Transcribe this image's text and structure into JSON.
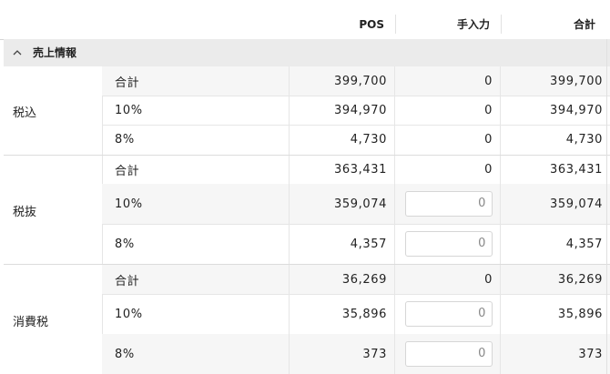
{
  "header": {
    "pos": "POS",
    "manual": "手入力",
    "total": "合計"
  },
  "section": {
    "title": "売上情報"
  },
  "groups": [
    {
      "label": "税込",
      "rows": [
        {
          "label": "合計",
          "pos": "399,700",
          "manual": "0",
          "total": "399,700",
          "editable": false
        },
        {
          "label": "10%",
          "pos": "394,970",
          "manual": "0",
          "total": "394,970",
          "editable": false
        },
        {
          "label": "8%",
          "pos": "4,730",
          "manual": "0",
          "total": "4,730",
          "editable": false
        }
      ]
    },
    {
      "label": "税抜",
      "rows": [
        {
          "label": "合計",
          "pos": "363,431",
          "manual": "0",
          "total": "363,431",
          "editable": false
        },
        {
          "label": "10%",
          "pos": "359,074",
          "manual": "0",
          "total": "359,074",
          "editable": true
        },
        {
          "label": "8%",
          "pos": "4,357",
          "manual": "0",
          "total": "4,357",
          "editable": true
        }
      ]
    },
    {
      "label": "消費税",
      "rows": [
        {
          "label": "合計",
          "pos": "36,269",
          "manual": "0",
          "total": "36,269",
          "editable": false
        },
        {
          "label": "10%",
          "pos": "35,896",
          "manual": "0",
          "total": "35,896",
          "editable": true
        },
        {
          "label": "8%",
          "pos": "373",
          "manual": "0",
          "total": "373",
          "editable": true
        }
      ]
    }
  ]
}
